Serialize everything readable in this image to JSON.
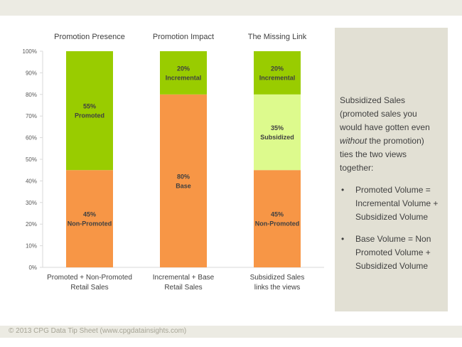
{
  "footer": "© 2013 CPG Data Tip Sheet (www.cpgdatainsights.com)",
  "sidebar": {
    "intro_before": "Subsidized Sales (promoted sales you would have gotten even ",
    "intro_emphasis": "without",
    "intro_after": " the promotion) ties the two views together:",
    "bullets": [
      "Promoted Volume = Incremental Volume + Subsidized Volume",
      "Base Volume = Non Promoted Volume + Subsidized Volume"
    ]
  },
  "colors": {
    "green": "#99cc00",
    "orange": "#f79646",
    "light_green": "#ddfa8d",
    "label": "#404040"
  },
  "chart_data": {
    "type": "bar",
    "stacked": true,
    "ylim": [
      0,
      100
    ],
    "yticks": [
      "0%",
      "10%",
      "20%",
      "30%",
      "40%",
      "50%",
      "60%",
      "70%",
      "80%",
      "90%",
      "100%"
    ],
    "columns": [
      {
        "title": "Promotion Presence",
        "caption": [
          "Promoted + Non-Promoted",
          "Retail Sales"
        ],
        "segments": [
          {
            "pct_label": "45%",
            "name": "Non-Promoted",
            "value": 45,
            "color": "#f79646"
          },
          {
            "pct_label": "55%",
            "name": "Promoted",
            "value": 55,
            "color": "#99cc00"
          }
        ]
      },
      {
        "title": "Promotion Impact",
        "caption": [
          "Incremental + Base",
          "Retail Sales"
        ],
        "segments": [
          {
            "pct_label": "80%",
            "name": "Base",
            "value": 80,
            "color": "#f79646"
          },
          {
            "pct_label": "20%",
            "name": "Incremental",
            "value": 20,
            "color": "#99cc00"
          }
        ]
      },
      {
        "title": "The Missing Link",
        "caption": [
          "Subsidized Sales",
          "links the views"
        ],
        "segments": [
          {
            "pct_label": "45%",
            "name": "Non-Promoted",
            "value": 45,
            "color": "#f79646"
          },
          {
            "pct_label": "35%",
            "name": "Subsidized",
            "value": 35,
            "color": "#ddfa8d"
          },
          {
            "pct_label": "20%",
            "name": "Incremental",
            "value": 20,
            "color": "#99cc00"
          }
        ]
      }
    ]
  }
}
